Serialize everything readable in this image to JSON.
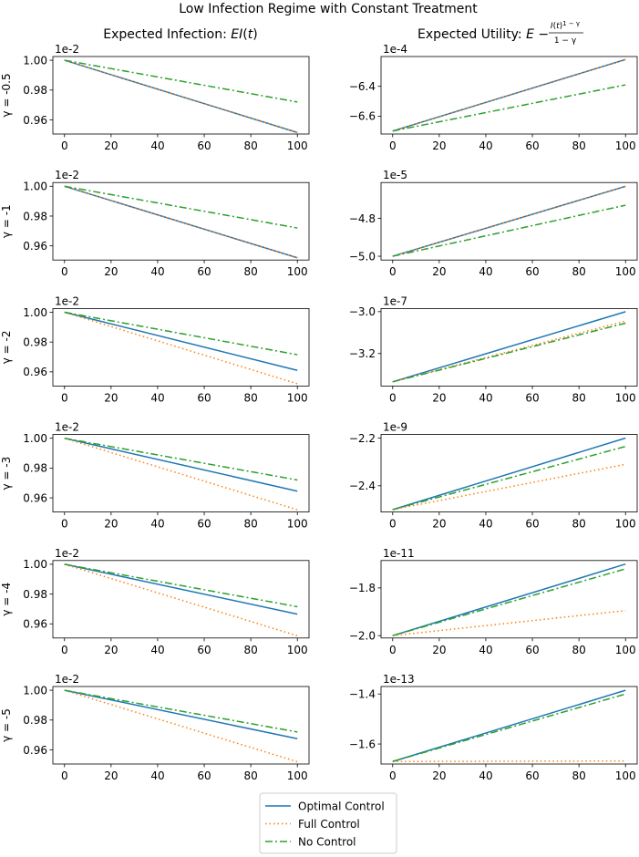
{
  "suptitle": "Low Infection Regime with Constant Treatment",
  "column_titles": {
    "left": "Expected Infection: EI(t)",
    "right": "Expected Utility: E − I(t)^(1−γ) / (1−γ)"
  },
  "legend": [
    {
      "name": "Optimal Control",
      "color": "#1f77b4",
      "style": "solid"
    },
    {
      "name": "Full Control",
      "color": "#ff7f0e",
      "style": "dotted"
    },
    {
      "name": "No Control",
      "color": "#2ca02c",
      "style": "dashdot"
    }
  ],
  "chart_data": [
    {
      "type": "line",
      "panel": "infection",
      "row_label": "γ = -0.5",
      "offset": "1e-2",
      "x": [
        0,
        100
      ],
      "xticks": [
        0,
        20,
        40,
        60,
        80,
        100
      ],
      "xlim": [
        -5,
        105
      ],
      "ylim": [
        0.9505,
        1.0025
      ],
      "yticks": [
        0.96,
        0.98,
        1.0
      ],
      "ytick_labels": [
        "0.96",
        "0.98",
        "1.00"
      ],
      "series": [
        {
          "name": "Optimal Control",
          "values": [
            1.0,
            0.9515
          ]
        },
        {
          "name": "Full Control",
          "values": [
            1.0,
            0.9515
          ]
        },
        {
          "name": "No Control",
          "values": [
            1.0,
            0.972
          ]
        }
      ]
    },
    {
      "type": "line",
      "panel": "utility",
      "row_label": "γ = -0.5",
      "offset": "1e-4",
      "x": [
        0,
        100
      ],
      "xticks": [
        0,
        20,
        40,
        60,
        80,
        100
      ],
      "xlim": [
        -5,
        105
      ],
      "ylim": [
        -6.72,
        -6.2
      ],
      "yticks": [
        -6.6,
        -6.4
      ],
      "ytick_labels": [
        "−6.6",
        "−6.4"
      ],
      "series": [
        {
          "name": "Optimal Control",
          "values": [
            -6.7,
            -6.22
          ]
        },
        {
          "name": "Full Control",
          "values": [
            -6.7,
            -6.22
          ]
        },
        {
          "name": "No Control",
          "values": [
            -6.7,
            -6.39
          ]
        }
      ]
    },
    {
      "type": "line",
      "panel": "infection",
      "row_label": "γ = -1",
      "offset": "1e-2",
      "x": [
        0,
        100
      ],
      "xticks": [
        0,
        20,
        40,
        60,
        80,
        100
      ],
      "xlim": [
        -5,
        105
      ],
      "ylim": [
        0.9505,
        1.0025
      ],
      "yticks": [
        0.96,
        0.98,
        1.0
      ],
      "ytick_labels": [
        "0.96",
        "0.98",
        "1.00"
      ],
      "series": [
        {
          "name": "Optimal Control",
          "values": [
            1.0,
            0.952
          ]
        },
        {
          "name": "Full Control",
          "values": [
            1.0,
            0.952
          ]
        },
        {
          "name": "No Control",
          "values": [
            1.0,
            0.972
          ]
        }
      ]
    },
    {
      "type": "line",
      "panel": "utility",
      "row_label": "γ = -1",
      "offset": "1e-5",
      "x": [
        0,
        100
      ],
      "xticks": [
        0,
        20,
        40,
        60,
        80,
        100
      ],
      "xlim": [
        -5,
        105
      ],
      "ylim": [
        -5.02,
        -4.61
      ],
      "yticks": [
        -5.0,
        -4.8
      ],
      "ytick_labels": [
        "−5.0",
        "−4.8"
      ],
      "series": [
        {
          "name": "Optimal Control",
          "values": [
            -5.0,
            -4.63
          ]
        },
        {
          "name": "Full Control",
          "values": [
            -5.0,
            -4.63
          ]
        },
        {
          "name": "No Control",
          "values": [
            -5.0,
            -4.73
          ]
        }
      ]
    },
    {
      "type": "line",
      "panel": "infection",
      "row_label": "γ = -2",
      "offset": "1e-2",
      "x": [
        0,
        100
      ],
      "xticks": [
        0,
        20,
        40,
        60,
        80,
        100
      ],
      "xlim": [
        -5,
        105
      ],
      "ylim": [
        0.9505,
        1.0025
      ],
      "yticks": [
        0.96,
        0.98,
        1.0
      ],
      "ytick_labels": [
        "0.96",
        "0.98",
        "1.00"
      ],
      "series": [
        {
          "name": "Optimal Control",
          "values": [
            1.0,
            0.961
          ]
        },
        {
          "name": "Full Control",
          "values": [
            1.0,
            0.952
          ]
        },
        {
          "name": "No Control",
          "values": [
            1.0,
            0.9715
          ]
        }
      ]
    },
    {
      "type": "line",
      "panel": "utility",
      "row_label": "γ = -2",
      "offset": "1e-7",
      "x": [
        0,
        100
      ],
      "xticks": [
        0,
        20,
        40,
        60,
        80,
        100
      ],
      "xlim": [
        -5,
        105
      ],
      "ylim": [
        -3.355,
        -2.985
      ],
      "yticks": [
        -3.2,
        -3.0
      ],
      "ytick_labels": [
        "−3.2",
        "−3.0"
      ],
      "series": [
        {
          "name": "Optimal Control",
          "values": [
            -3.335,
            -3.0
          ]
        },
        {
          "name": "Full Control",
          "values": [
            -3.335,
            -3.045
          ]
        },
        {
          "name": "No Control",
          "values": [
            -3.335,
            -3.055
          ]
        }
      ]
    },
    {
      "type": "line",
      "panel": "infection",
      "row_label": "γ = -3",
      "offset": "1e-2",
      "x": [
        0,
        100
      ],
      "xticks": [
        0,
        20,
        40,
        60,
        80,
        100
      ],
      "xlim": [
        -5,
        105
      ],
      "ylim": [
        0.9505,
        1.0025
      ],
      "yticks": [
        0.96,
        0.98,
        1.0
      ],
      "ytick_labels": [
        "0.96",
        "0.98",
        "1.00"
      ],
      "series": [
        {
          "name": "Optimal Control",
          "values": [
            1.0,
            0.9645
          ]
        },
        {
          "name": "Full Control",
          "values": [
            1.0,
            0.952
          ]
        },
        {
          "name": "No Control",
          "values": [
            1.0,
            0.972
          ]
        }
      ]
    },
    {
      "type": "line",
      "panel": "utility",
      "row_label": "γ = -3",
      "offset": "1e-9",
      "x": [
        0,
        100
      ],
      "xticks": [
        0,
        20,
        40,
        60,
        80,
        100
      ],
      "xlim": [
        -5,
        105
      ],
      "ylim": [
        -2.51,
        -2.185
      ],
      "yticks": [
        -2.4,
        -2.2
      ],
      "ytick_labels": [
        "−2.4",
        "−2.2"
      ],
      "series": [
        {
          "name": "Optimal Control",
          "values": [
            -2.5,
            -2.2
          ]
        },
        {
          "name": "Full Control",
          "values": [
            -2.5,
            -2.31
          ]
        },
        {
          "name": "No Control",
          "values": [
            -2.5,
            -2.235
          ]
        }
      ]
    },
    {
      "type": "line",
      "panel": "infection",
      "row_label": "γ = -4",
      "offset": "1e-2",
      "x": [
        0,
        100
      ],
      "xticks": [
        0,
        20,
        40,
        60,
        80,
        100
      ],
      "xlim": [
        -5,
        105
      ],
      "ylim": [
        0.9505,
        1.0025
      ],
      "yticks": [
        0.96,
        0.98,
        1.0
      ],
      "ytick_labels": [
        "0.96",
        "0.98",
        "1.00"
      ],
      "series": [
        {
          "name": "Optimal Control",
          "values": [
            1.0,
            0.9665
          ]
        },
        {
          "name": "Full Control",
          "values": [
            1.0,
            0.952
          ]
        },
        {
          "name": "No Control",
          "values": [
            1.0,
            0.9715
          ]
        }
      ]
    },
    {
      "type": "line",
      "panel": "utility",
      "row_label": "γ = -4",
      "offset": "1e-11",
      "x": [
        0,
        100
      ],
      "xticks": [
        0,
        20,
        40,
        60,
        80,
        100
      ],
      "xlim": [
        -5,
        105
      ],
      "ylim": [
        -2.01,
        -1.685
      ],
      "yticks": [
        -2.0,
        -1.8
      ],
      "ytick_labels": [
        "−2.0",
        "−1.8"
      ],
      "series": [
        {
          "name": "Optimal Control",
          "values": [
            -2.0,
            -1.7
          ]
        },
        {
          "name": "Full Control",
          "values": [
            -2.0,
            -1.895
          ]
        },
        {
          "name": "No Control",
          "values": [
            -2.0,
            -1.72
          ]
        }
      ]
    },
    {
      "type": "line",
      "panel": "infection",
      "row_label": "γ = -5",
      "offset": "1e-2",
      "x": [
        0,
        100
      ],
      "xticks": [
        0,
        20,
        40,
        60,
        80,
        100
      ],
      "xlim": [
        -5,
        105
      ],
      "ylim": [
        0.9505,
        1.0025
      ],
      "yticks": [
        0.96,
        0.98,
        1.0
      ],
      "ytick_labels": [
        "0.96",
        "0.98",
        "1.00"
      ],
      "series": [
        {
          "name": "Optimal Control",
          "values": [
            1.0,
            0.9675
          ]
        },
        {
          "name": "Full Control",
          "values": [
            1.0,
            0.952
          ]
        },
        {
          "name": "No Control",
          "values": [
            1.0,
            0.972
          ]
        }
      ]
    },
    {
      "type": "line",
      "panel": "utility",
      "row_label": "γ = -5",
      "offset": "1e-13",
      "x": [
        0,
        100
      ],
      "xticks": [
        0,
        20,
        40,
        60,
        80,
        100
      ],
      "xlim": [
        -5,
        105
      ],
      "ylim": [
        -1.68,
        -1.37
      ],
      "yticks": [
        -1.6,
        -1.4
      ],
      "ytick_labels": [
        "−1.6",
        "−1.4"
      ],
      "series": [
        {
          "name": "Optimal Control",
          "values": [
            -1.67,
            -1.385
          ]
        },
        {
          "name": "Full Control",
          "values": [
            -1.67,
            -1.668
          ]
        },
        {
          "name": "No Control",
          "values": [
            -1.67,
            -1.4
          ]
        }
      ]
    }
  ]
}
